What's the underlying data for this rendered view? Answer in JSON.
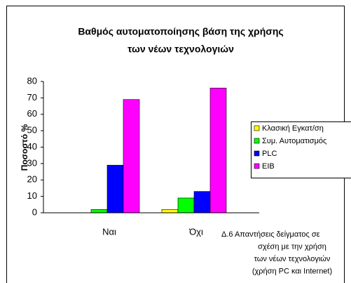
{
  "chart_data": {
    "type": "bar",
    "title": [
      "Βαθμός αυτοματοποίησης βάση της χρήσης",
      "των νέων τεχνολογιών"
    ],
    "y_label": "Ποσοστό %",
    "categories": [
      "Ναι",
      "Όχι"
    ],
    "series": [
      {
        "name": "Κλασική Εγκατ/ση",
        "color": "#ffff00",
        "values": [
          0,
          2
        ]
      },
      {
        "name": "Συμ. Αυτοματισμός",
        "color": "#00ff00",
        "values": [
          2,
          9
        ]
      },
      {
        "name": "PLC",
        "color": "#0000ff",
        "values": [
          29,
          13
        ]
      },
      {
        "name": "EIB",
        "color": "#ff00ff",
        "values": [
          69,
          76
        ]
      }
    ],
    "ylim": [
      0,
      80
    ],
    "yticks": [
      0,
      10,
      20,
      30,
      40,
      50,
      60,
      70,
      80
    ],
    "grid": false,
    "legend": "right",
    "annotation": [
      "Δ.6 Απαντήσεις δείγματος σε",
      "σχέση με την χρήση",
      "των νέων τεχνολογιών",
      "(χρήση PC και Internet)"
    ]
  }
}
